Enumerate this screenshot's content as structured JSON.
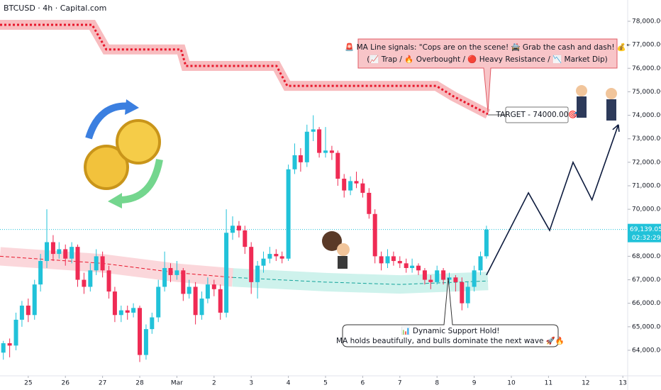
{
  "header": {
    "symbol": "BTCUSD · 4h · Capital.com"
  },
  "chart_data": {
    "type": "candlestick",
    "colors": {
      "up": "#21c2d9",
      "down": "#ef2b54"
    },
    "xlim": [
      24.24,
      41.13
    ],
    "ylim": [
      62913,
      78905
    ],
    "xticks": [
      {
        "value": 25,
        "label": "25"
      },
      {
        "value": 26,
        "label": "26"
      },
      {
        "value": 27,
        "label": "27"
      },
      {
        "value": 28,
        "label": "28"
      },
      {
        "value": 29,
        "label": "Mar"
      },
      {
        "value": 30,
        "label": "2"
      },
      {
        "value": 31,
        "label": "3"
      },
      {
        "value": 32,
        "label": "4"
      },
      {
        "value": 33,
        "label": "5"
      },
      {
        "value": 34,
        "label": "6"
      },
      {
        "value": 35,
        "label": "7"
      },
      {
        "value": 36,
        "label": "8"
      },
      {
        "value": 37,
        "label": "9"
      },
      {
        "value": 38,
        "label": "10"
      },
      {
        "value": 39,
        "label": "11"
      },
      {
        "value": 40,
        "label": "12"
      },
      {
        "value": 41,
        "label": "13"
      }
    ],
    "yticks": [
      {
        "value": 64000,
        "label": "64,000.00"
      },
      {
        "value": 65000,
        "label": "65,000.00"
      },
      {
        "value": 66000,
        "label": "66,000.00"
      },
      {
        "value": 67000,
        "label": "67,000.00"
      },
      {
        "value": 68000,
        "label": "68,000.00"
      },
      {
        "value": 69000,
        "label": "69,000.00"
      },
      {
        "value": 70000,
        "label": "70,000.00"
      },
      {
        "value": 71000,
        "label": "71,000.00"
      },
      {
        "value": 72000,
        "label": "72,000.00"
      },
      {
        "value": 73000,
        "label": "73,000.00"
      },
      {
        "value": 74000,
        "label": "74,000.00"
      },
      {
        "value": 75000,
        "label": "75,000.00"
      },
      {
        "value": 76000,
        "label": "76,000.00"
      },
      {
        "value": 77000,
        "label": "77,000.00"
      },
      {
        "value": 78000,
        "label": "78,000.00"
      }
    ],
    "x": [
      24.33,
      24.5,
      24.67,
      24.83,
      25,
      25.17,
      25.33,
      25.5,
      25.67,
      25.83,
      26,
      26.17,
      26.33,
      26.5,
      26.67,
      26.83,
      27,
      27.17,
      27.33,
      27.5,
      27.67,
      27.83,
      28,
      28.17,
      28.33,
      28.5,
      28.67,
      28.83,
      29,
      29.17,
      29.33,
      29.5,
      29.67,
      29.83,
      30,
      30.17,
      30.33,
      30.5,
      30.67,
      30.83,
      31,
      31.17,
      31.33,
      31.5,
      31.67,
      31.83,
      32,
      32.17,
      32.33,
      32.5,
      32.67,
      32.83,
      33,
      33.17,
      33.33,
      33.5,
      33.67,
      33.83,
      34,
      34.17,
      34.33,
      34.5,
      34.67,
      34.83,
      35,
      35.17,
      35.33,
      35.5,
      35.67,
      35.83,
      36,
      36.17,
      36.33,
      36.5,
      36.67,
      36.83,
      37,
      37.17,
      37.33
    ],
    "candles": [
      [
        63900,
        64400,
        63600,
        64300
      ],
      [
        64300,
        64500,
        63700,
        64200
      ],
      [
        64200,
        65600,
        64000,
        65300
      ],
      [
        65300,
        66100,
        65000,
        65900
      ],
      [
        65900,
        66200,
        65200,
        65500
      ],
      [
        65500,
        67000,
        65300,
        66800
      ],
      [
        66800,
        68100,
        66500,
        67800
      ],
      [
        67800,
        70000,
        67500,
        68600
      ],
      [
        68600,
        68900,
        67800,
        68100
      ],
      [
        68100,
        68600,
        67900,
        68300
      ],
      [
        68300,
        68500,
        67600,
        67900
      ],
      [
        67900,
        68600,
        67700,
        68400
      ],
      [
        68400,
        68500,
        66700,
        67000
      ],
      [
        67000,
        67300,
        66400,
        66700
      ],
      [
        66700,
        67700,
        66500,
        67400
      ],
      [
        67400,
        68300,
        67200,
        68000
      ],
      [
        68000,
        68200,
        67100,
        67400
      ],
      [
        67400,
        67600,
        66200,
        66500
      ],
      [
        66500,
        66700,
        65200,
        65500
      ],
      [
        65500,
        65900,
        65200,
        65700
      ],
      [
        65700,
        65900,
        65300,
        65600
      ],
      [
        65600,
        66000,
        65400,
        65800
      ],
      [
        65800,
        65900,
        63500,
        63800
      ],
      [
        63800,
        65100,
        63600,
        64900
      ],
      [
        64900,
        65600,
        64700,
        65400
      ],
      [
        65400,
        67000,
        65200,
        66700
      ],
      [
        66700,
        68200,
        66500,
        67500
      ],
      [
        67500,
        67700,
        66900,
        67200
      ],
      [
        67200,
        67800,
        67000,
        67400
      ],
      [
        67400,
        67500,
        66100,
        66400
      ],
      [
        66400,
        67000,
        66200,
        66700
      ],
      [
        66700,
        66900,
        65100,
        65500
      ],
      [
        65500,
        66500,
        65300,
        66200
      ],
      [
        66200,
        67100,
        66000,
        66800
      ],
      [
        66800,
        67000,
        66300,
        66600
      ],
      [
        66600,
        66800,
        65300,
        65600
      ],
      [
        65600,
        70000,
        65400,
        69000
      ],
      [
        69000,
        69700,
        68700,
        69300
      ],
      [
        69300,
        69500,
        68800,
        69100
      ],
      [
        69100,
        69300,
        68100,
        68400
      ],
      [
        68400,
        68600,
        66400,
        66900
      ],
      [
        66900,
        67800,
        66200,
        67600
      ],
      [
        67600,
        68200,
        67300,
        67900
      ],
      [
        67900,
        68400,
        67700,
        68100
      ],
      [
        68100,
        68300,
        67800,
        68000
      ],
      [
        68000,
        68200,
        67700,
        67900
      ],
      [
        67900,
        71900,
        67800,
        71700
      ],
      [
        71700,
        72800,
        71500,
        72300
      ],
      [
        72300,
        72600,
        71600,
        72000
      ],
      [
        72000,
        73600,
        71800,
        73300
      ],
      [
        73300,
        74000,
        72900,
        73400
      ],
      [
        73400,
        73500,
        72200,
        72400
      ],
      [
        72400,
        73500,
        72200,
        72500
      ],
      [
        72500,
        72700,
        72100,
        72400
      ],
      [
        72400,
        72500,
        71000,
        71300
      ],
      [
        71300,
        71500,
        70500,
        70800
      ],
      [
        70800,
        71400,
        70600,
        71200
      ],
      [
        71200,
        71600,
        70900,
        71100
      ],
      [
        71100,
        71300,
        70500,
        70700
      ],
      [
        70700,
        70900,
        69600,
        69800
      ],
      [
        69800,
        70000,
        67700,
        68000
      ],
      [
        68000,
        68200,
        67400,
        67700
      ],
      [
        67700,
        68300,
        67500,
        68000
      ],
      [
        68000,
        68200,
        67600,
        67800
      ],
      [
        67800,
        68000,
        67500,
        67700
      ],
      [
        67700,
        67900,
        67300,
        67500
      ],
      [
        67500,
        67900,
        67300,
        67600
      ],
      [
        67600,
        67700,
        67200,
        67400
      ],
      [
        67400,
        67500,
        66800,
        67000
      ],
      [
        67000,
        67200,
        66600,
        66900
      ],
      [
        66900,
        67600,
        66800,
        67400
      ],
      [
        67400,
        67500,
        66800,
        67000
      ],
      [
        67000,
        67300,
        66800,
        67100
      ],
      [
        67100,
        67200,
        66500,
        66900
      ],
      [
        66900,
        67100,
        65700,
        66000
      ],
      [
        66000,
        66900,
        65800,
        66700
      ],
      [
        66700,
        67600,
        66500,
        67400
      ],
      [
        67400,
        68200,
        67200,
        68000
      ],
      [
        68000,
        69300,
        67900,
        69139.05
      ]
    ],
    "lines": [
      {
        "style": "upper",
        "color": "#e8182c",
        "band": "#f6a5a9",
        "x": [
          24.24,
          26.72,
          27.1,
          29.11,
          29.24,
          31.68,
          31.97,
          35.98,
          36.45,
          37.37
        ],
        "values": [
          77850,
          77850,
          76800,
          76800,
          76100,
          76100,
          75250,
          75250,
          74800,
          74050
        ]
      },
      {
        "style": "lower",
        "color": "#e8182c",
        "band": "#f9c9cf",
        "x": [
          24.24,
          27,
          29,
          30.5
        ],
        "values": [
          68000,
          67700,
          67300,
          67100
        ]
      },
      {
        "style": "lower",
        "color": "#12a39a",
        "band": "#bdeee6",
        "x": [
          30.5,
          33,
          35,
          37.37
        ],
        "values": [
          67100,
          66900,
          66800,
          66950
        ]
      }
    ],
    "projection": {
      "color": "#0d1b3e",
      "x": [
        37.33,
        38.46,
        39.03,
        39.66,
        40.17,
        40.88
      ],
      "values": [
        67200,
        70700,
        69100,
        72000,
        70400,
        73600
      ]
    },
    "last_price": {
      "value": 69139.05,
      "label": "69,139.05",
      "countdown": "02:32:29"
    },
    "annotations": {
      "signal": [
        "🚨 MA Line signals: \"Cops are on the scene! 🚔 Grab the cash and dash! 💰\"",
        "(📈 Trap / 🔥 Overbought / 🔴 Heavy Resistance / 📉 Market Dip)"
      ],
      "target": "TARGET - 74000.00🎯",
      "support": [
        "📊 Dynamic Support Hold!",
        "MA holds beautifully, and bulls dominate the next wave 🚀🔥"
      ]
    }
  }
}
